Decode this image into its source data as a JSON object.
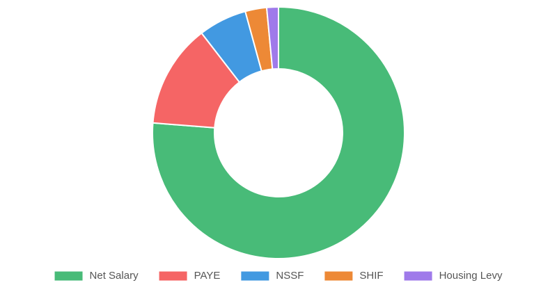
{
  "chart_data": {
    "type": "doughnut",
    "categories": [
      "Net Salary",
      "PAYE",
      "NSSF",
      "SHIF",
      "Housing Levy"
    ],
    "values": [
      76.25,
      13.3,
      6.2,
      2.75,
      1.5
    ],
    "colors": [
      "#48bb78",
      "#f56565",
      "#4299e1",
      "#ed8936",
      "#9f7aea"
    ],
    "legend": "bottom"
  }
}
